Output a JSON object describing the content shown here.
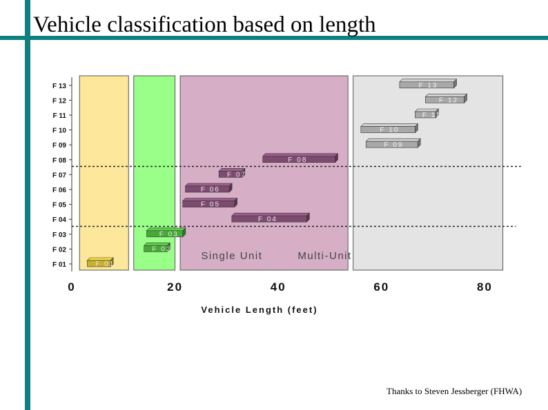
{
  "slide": {
    "title": "Vehicle classification based on length",
    "credit": "Thanks to Steven Jessberger (FHWA)"
  },
  "colors": {
    "accent_bar": "#0f7f7f",
    "zone_yellow": "#fce79a",
    "zone_green": "#99ff88",
    "zone_pink": "#d6aec5",
    "zone_gray": "#e4e4e4",
    "bar_yellow": "#c8b030",
    "bar_green": "#48a838",
    "bar_purple": "#7e4b70",
    "bar_gray": "#a8a8a8"
  },
  "chart_data": {
    "type": "bar",
    "orientation": "horizontal-range",
    "xlabel": "Vehicle Length (feet)",
    "ylabel": "",
    "xlim": [
      0,
      85
    ],
    "xticks": [
      0,
      20,
      40,
      60,
      80
    ],
    "categories": [
      "F01",
      "F02",
      "F03",
      "F04",
      "F05",
      "F06",
      "F07",
      "F08",
      "F09",
      "F10",
      "F11",
      "F12",
      "F13"
    ],
    "category_labels": [
      "F 01",
      "F 02",
      "F 03",
      "F 04",
      "F 05",
      "F 06",
      "F 07",
      "F 08",
      "F 09",
      "F 10",
      "F 11",
      "F 12",
      "F 13"
    ],
    "ranges": [
      {
        "class": "F01",
        "label": "F 01",
        "start": 3,
        "end": 7.5,
        "color": "yellow"
      },
      {
        "class": "F02",
        "label": "F 02",
        "start": 14,
        "end": 18.5,
        "color": "green"
      },
      {
        "class": "F03",
        "label": "F 03",
        "start": 14.5,
        "end": 21.5,
        "color": "green"
      },
      {
        "class": "F04",
        "label": "F 04",
        "start": 31,
        "end": 45.5,
        "color": "purple"
      },
      {
        "class": "F05",
        "label": "F 05",
        "start": 21.5,
        "end": 31.5,
        "color": "purple"
      },
      {
        "class": "F06",
        "label": "F 06",
        "start": 22,
        "end": 30.5,
        "color": "purple"
      },
      {
        "class": "F07",
        "label": "F 07",
        "start": 28.5,
        "end": 33,
        "color": "purple"
      },
      {
        "class": "F08",
        "label": "F 08",
        "start": 37,
        "end": 51,
        "color": "purple"
      },
      {
        "class": "F09",
        "label": "F 09",
        "start": 57,
        "end": 67,
        "color": "gray"
      },
      {
        "class": "F10",
        "label": "F 10",
        "start": 56,
        "end": 66.5,
        "color": "gray"
      },
      {
        "class": "F11",
        "label": "F 11",
        "start": 66.5,
        "end": 70.5,
        "color": "gray"
      },
      {
        "class": "F12",
        "label": "F 12",
        "start": 68.5,
        "end": 76,
        "color": "gray"
      },
      {
        "class": "F13",
        "label": "F 13",
        "start": 63.5,
        "end": 74,
        "color": "gray"
      }
    ],
    "zones": [
      {
        "start": 1.5,
        "end": 11,
        "color": "yellow"
      },
      {
        "start": 12,
        "end": 20,
        "color": "green"
      },
      {
        "start": 21,
        "end": 53.5,
        "color": "pink"
      },
      {
        "start": 54.5,
        "end": 83.5,
        "color": "gray"
      }
    ],
    "annotations": [
      {
        "text": "Single Unit",
        "x": 31
      },
      {
        "text": "Multi-Unit",
        "x": 49
      }
    ],
    "threshold_lines": [
      {
        "between": [
          "F07",
          "F08"
        ],
        "style": "dotted"
      },
      {
        "between": [
          "F03",
          "F04"
        ],
        "style": "dotted"
      }
    ],
    "grid": false,
    "legend": "none"
  }
}
